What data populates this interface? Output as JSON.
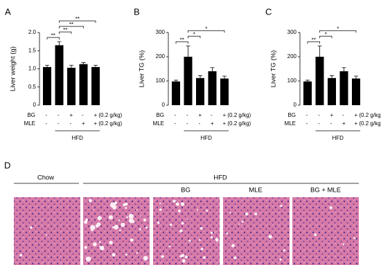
{
  "chart_data": [
    {
      "type": "bar",
      "panel": "A",
      "ylabel": "Liver weight (g)",
      "categories": [
        null,
        null,
        null,
        null,
        null
      ],
      "values": [
        1.05,
        1.65,
        1.03,
        1.13,
        1.05
      ],
      "errors": [
        0.05,
        0.1,
        0.07,
        0.04,
        0.05
      ],
      "color": "#000000",
      "ylim": [
        0,
        2
      ],
      "yticks": [
        0,
        0.5,
        {
          "value": 1,
          "label": "1.0"
        },
        1.5,
        {
          "value": 2,
          "label": "2.0"
        }
      ],
      "significance": [
        {
          "from": 0,
          "to": 1,
          "label": "**"
        },
        {
          "from": 1,
          "to": 2,
          "label": "**"
        },
        {
          "from": 1,
          "to": 3,
          "label": "**"
        },
        {
          "from": 1,
          "to": 4,
          "label": "**"
        }
      ],
      "treatments": [
        {
          "label": "BG",
          "cells": [
            "-",
            "-",
            "+",
            "-",
            "+ (0.2 g/kg)"
          ]
        },
        {
          "label": "MLE",
          "cells": [
            "-",
            "-",
            "-",
            "+",
            "+ (0.2 g/kg)"
          ]
        }
      ],
      "group": {
        "label": "HFD",
        "from": 1,
        "to": 4
      }
    },
    {
      "type": "bar",
      "panel": "B",
      "ylabel": "Liver TG (%)",
      "categories": [
        null,
        null,
        null,
        null,
        null
      ],
      "values": [
        98,
        200,
        112,
        140,
        110
      ],
      "errors": [
        5,
        45,
        10,
        15,
        10
      ],
      "color": "#000000",
      "ylim": [
        0,
        300
      ],
      "yticks": [
        0,
        100,
        200,
        300
      ],
      "significance": [
        {
          "from": 0,
          "to": 1,
          "label": "**"
        },
        {
          "from": 1,
          "to": 2,
          "label": "*"
        },
        {
          "from": 1,
          "to": 4,
          "label": "*"
        }
      ],
      "treatments": [
        {
          "label": "BG",
          "cells": [
            "-",
            "-",
            "+",
            "-",
            "+ (0.2 g/kg)"
          ]
        },
        {
          "label": "MLE",
          "cells": [
            "-",
            "-",
            "-",
            "+",
            "+ (0.2 g/kg)"
          ]
        }
      ],
      "group": {
        "label": "HFD",
        "from": 1,
        "to": 4
      }
    },
    {
      "type": "bar",
      "panel": "C",
      "ylabel": "Liver TG (%)",
      "categories": [
        null,
        null,
        null,
        null,
        null
      ],
      "values": [
        98,
        200,
        112,
        140,
        110
      ],
      "errors": [
        5,
        45,
        10,
        15,
        10
      ],
      "color": "#000000",
      "ylim": [
        0,
        300
      ],
      "yticks": [
        0,
        100,
        200,
        300
      ],
      "significance": [
        {
          "from": 0,
          "to": 1,
          "label": "**"
        },
        {
          "from": 1,
          "to": 2,
          "label": "*"
        },
        {
          "from": 1,
          "to": 4,
          "label": "*"
        }
      ],
      "treatments": [
        {
          "label": "BG",
          "cells": [
            "-",
            "-",
            "+",
            "-",
            "+ (0.2 g/kg)"
          ]
        },
        {
          "label": "MLE",
          "cells": [
            "-",
            "-",
            "-",
            "+",
            "+ (0.2 g/kg)"
          ]
        }
      ],
      "group": {
        "label": "HFD",
        "from": 1,
        "to": 4
      }
    }
  ],
  "panel_d": {
    "panel": "D",
    "groups": [
      "Chow",
      "HFD"
    ],
    "conditions": [
      "BG",
      "MLE",
      "BG + MLE"
    ]
  }
}
